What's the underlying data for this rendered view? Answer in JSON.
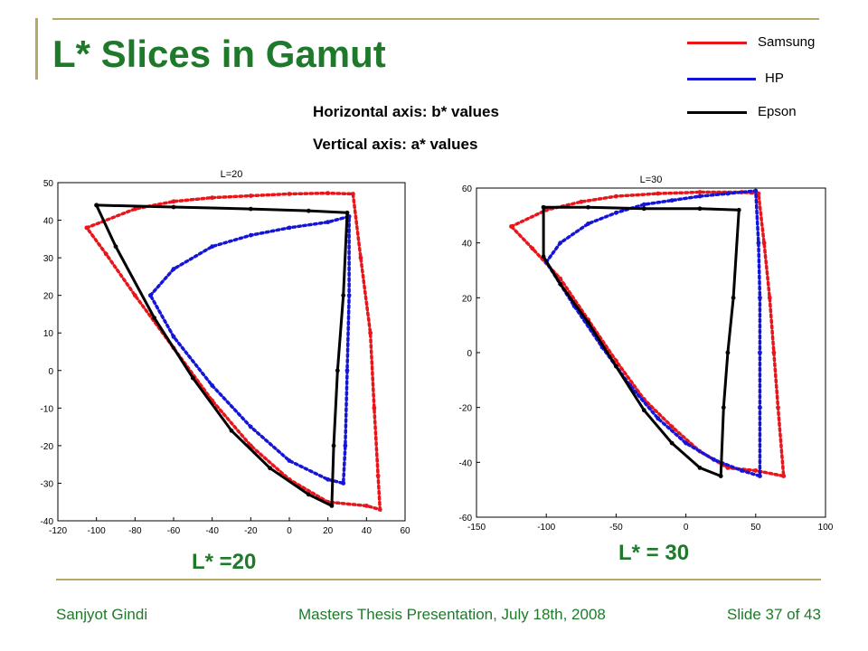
{
  "slide": {
    "title": "L* Slices in Gamut",
    "axis_note_horizontal": "Horizontal axis: b* values",
    "axis_note_vertical": "Vertical axis: a* values",
    "chart_label_left": "L* =20",
    "chart_label_right": "L* = 30",
    "footer_author": "Sanjyot Gindi",
    "footer_event": "Masters Thesis Presentation, July 18th, 2008",
    "footer_slide": "Slide 37 of 43",
    "accent_color": "#1e7a2a",
    "rule_color": "#b5a96a"
  },
  "legend": [
    {
      "name": "Samsung",
      "color": "#e8151b"
    },
    {
      "name": "HP",
      "color": "#1515d8"
    },
    {
      "name": "Epson",
      "color": "#000000"
    }
  ],
  "chart_data": [
    {
      "type": "scatter",
      "title": "L=20",
      "xlim": [
        -120,
        60
      ],
      "ylim": [
        -40,
        50
      ],
      "xticks": [
        -120,
        -100,
        -80,
        -60,
        -40,
        -20,
        0,
        20,
        40,
        60
      ],
      "yticks": [
        -40,
        -30,
        -20,
        -10,
        0,
        10,
        20,
        30,
        40,
        50
      ],
      "series": [
        {
          "name": "Samsung",
          "color": "#e8151b",
          "style": "dots",
          "points": [
            [
              -105,
              38
            ],
            [
              -80,
              43
            ],
            [
              -60,
              45
            ],
            [
              -40,
              46
            ],
            [
              -20,
              46.5
            ],
            [
              0,
              47
            ],
            [
              20,
              47.2
            ],
            [
              33,
              47
            ],
            [
              37,
              30
            ],
            [
              42,
              10
            ],
            [
              44,
              -10
            ],
            [
              46,
              -28
            ],
            [
              47,
              -37
            ],
            [
              40,
              -36
            ],
            [
              20,
              -35
            ],
            [
              0,
              -29
            ],
            [
              -20,
              -20
            ],
            [
              -40,
              -8
            ],
            [
              -60,
              6
            ],
            [
              -80,
              20
            ],
            [
              -95,
              31
            ],
            [
              -105,
              38
            ]
          ]
        },
        {
          "name": "HP",
          "color": "#1515d8",
          "style": "dots",
          "points": [
            [
              -72,
              20
            ],
            [
              -60,
              27
            ],
            [
              -40,
              33
            ],
            [
              -20,
              36
            ],
            [
              0,
              38
            ],
            [
              20,
              39.5
            ],
            [
              31,
              41
            ],
            [
              31,
              20
            ],
            [
              30,
              0
            ],
            [
              29,
              -20
            ],
            [
              28,
              -30
            ],
            [
              20,
              -29
            ],
            [
              0,
              -24
            ],
            [
              -20,
              -15
            ],
            [
              -40,
              -4
            ],
            [
              -60,
              9
            ],
            [
              -72,
              20
            ]
          ]
        },
        {
          "name": "Epson",
          "color": "#000000",
          "style": "solid",
          "points": [
            [
              -100,
              44
            ],
            [
              -60,
              43.5
            ],
            [
              -20,
              43
            ],
            [
              10,
              42.5
            ],
            [
              30,
              42
            ],
            [
              28,
              20
            ],
            [
              25,
              0
            ],
            [
              23,
              -20
            ],
            [
              22,
              -36
            ],
            [
              10,
              -33
            ],
            [
              -10,
              -26
            ],
            [
              -30,
              -16
            ],
            [
              -50,
              -2
            ],
            [
              -70,
              14
            ],
            [
              -90,
              33
            ],
            [
              -100,
              44
            ]
          ]
        }
      ]
    },
    {
      "type": "scatter",
      "title": "L=30",
      "xlim": [
        -150,
        100
      ],
      "ylim": [
        -60,
        60
      ],
      "xticks": [
        -150,
        -100,
        -50,
        0,
        50,
        100
      ],
      "yticks": [
        -60,
        -40,
        -20,
        0,
        20,
        40,
        60
      ],
      "series": [
        {
          "name": "Samsung",
          "color": "#e8151b",
          "style": "dots",
          "points": [
            [
              -125,
              46
            ],
            [
              -100,
              52
            ],
            [
              -75,
              55
            ],
            [
              -50,
              57
            ],
            [
              -20,
              58
            ],
            [
              10,
              58.5
            ],
            [
              40,
              58.5
            ],
            [
              52,
              58
            ],
            [
              56,
              40
            ],
            [
              60,
              20
            ],
            [
              63,
              0
            ],
            [
              66,
              -20
            ],
            [
              70,
              -45
            ],
            [
              50,
              -43
            ],
            [
              30,
              -42
            ],
            [
              10,
              -36
            ],
            [
              -10,
              -27
            ],
            [
              -30,
              -17
            ],
            [
              -50,
              -3
            ],
            [
              -70,
              12
            ],
            [
              -90,
              27
            ],
            [
              -110,
              38
            ],
            [
              -125,
              46
            ]
          ]
        },
        {
          "name": "HP",
          "color": "#1515d8",
          "style": "dots",
          "points": [
            [
              -100,
              33
            ],
            [
              -90,
              40
            ],
            [
              -70,
              47
            ],
            [
              -50,
              51
            ],
            [
              -30,
              54
            ],
            [
              -10,
              55.5
            ],
            [
              10,
              57
            ],
            [
              30,
              58
            ],
            [
              50,
              59
            ],
            [
              52,
              40
            ],
            [
              53,
              20
            ],
            [
              53,
              0
            ],
            [
              53,
              -20
            ],
            [
              53,
              -45
            ],
            [
              40,
              -43
            ],
            [
              20,
              -39
            ],
            [
              0,
              -33
            ],
            [
              -20,
              -24
            ],
            [
              -40,
              -12
            ],
            [
              -60,
              2
            ],
            [
              -80,
              17
            ],
            [
              -100,
              33
            ]
          ]
        },
        {
          "name": "Epson",
          "color": "#000000",
          "style": "solid",
          "points": [
            [
              -102,
              53
            ],
            [
              -70,
              53
            ],
            [
              -30,
              52.5
            ],
            [
              10,
              52.5
            ],
            [
              38,
              52
            ],
            [
              34,
              20
            ],
            [
              30,
              0
            ],
            [
              27,
              -20
            ],
            [
              25,
              -45
            ],
            [
              10,
              -42
            ],
            [
              -10,
              -33
            ],
            [
              -30,
              -21
            ],
            [
              -50,
              -5
            ],
            [
              -70,
              11
            ],
            [
              -90,
              25
            ],
            [
              -102,
              35
            ],
            [
              -102,
              53
            ]
          ]
        }
      ]
    }
  ]
}
